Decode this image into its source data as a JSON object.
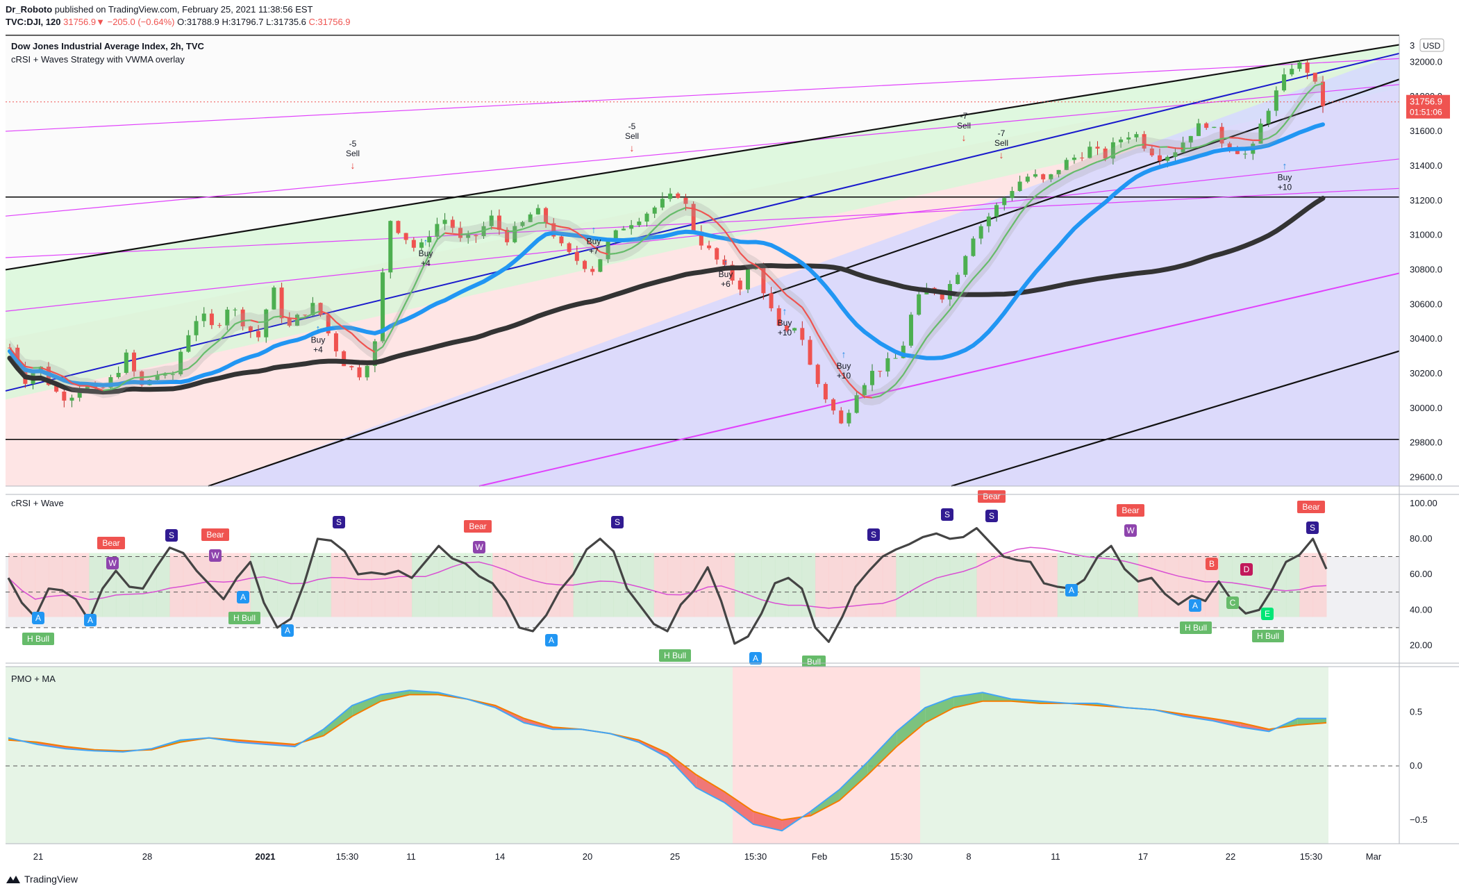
{
  "publisher": {
    "user": "Dr_Roboto",
    "text": "published on TradingView.com, February 25, 2021 11:38:56 EST"
  },
  "ticker_line": {
    "symbol": "TVC:DJI, 120",
    "last": "31756.9",
    "change": "−205.0 (−0.64%)",
    "open": "O:31788.9",
    "high": "H:31796.7",
    "low": "L:31735.6",
    "close": "C:31756.9"
  },
  "main_pane": {
    "title": "Dow Jones Industrial Average Index, 2h, TVC",
    "subtitle": "cRSI + Waves Strategy with VWMA overlay",
    "currency": "USD",
    "price_tag": "31756.9",
    "countdown": "01:51:06",
    "price_axis": [
      "32000.0",
      "31800.0",
      "31600.0",
      "31400.0",
      "31200.0",
      "31000.0",
      "30800.0",
      "30600.0",
      "30400.0",
      "30200.0",
      "30000.0",
      "29800.0",
      "29600.0"
    ],
    "top_partial_label": "3"
  },
  "crsi_pane": {
    "title": "cRSI + Wave",
    "axis": [
      "100.00",
      "80.00",
      "60.00",
      "40.00",
      "20.00"
    ]
  },
  "pmo_pane": {
    "title": "PMO + MA",
    "axis": [
      "0.5",
      "0.0",
      "−0.5"
    ]
  },
  "time_axis": [
    "21",
    "28",
    "2021",
    "15:30",
    "11",
    "14",
    "20",
    "25",
    "15:30",
    "Feb",
    "15:30",
    "8",
    "11",
    "17",
    "22",
    "15:30",
    "Mar"
  ],
  "signals": [
    {
      "type": "sell",
      "l1": "-5",
      "l2": "Sell"
    },
    {
      "type": "sell",
      "l1": "-5",
      "l2": "Sell"
    },
    {
      "type": "sell",
      "l1": "-7",
      "l2": "Sell"
    },
    {
      "type": "sell",
      "l1": "-7",
      "l2": "Sell"
    },
    {
      "type": "buy",
      "l1": "Buy",
      "l2": "+4"
    },
    {
      "type": "buy",
      "l1": "Buy",
      "l2": "+4"
    },
    {
      "type": "buy",
      "l1": "Buy",
      "l2": "+7"
    },
    {
      "type": "buy",
      "l1": "Buy",
      "l2": "+6"
    },
    {
      "type": "buy",
      "l1": "Buy",
      "l2": "+10"
    },
    {
      "type": "buy",
      "l1": "Buy",
      "l2": "+10"
    },
    {
      "type": "buy",
      "l1": "Buy",
      "l2": "+10"
    }
  ],
  "crsi_labels": {
    "bear": "Bear",
    "hbull": "H Bull",
    "bull": "Bull",
    "letters": [
      "A",
      "S",
      "W",
      "B",
      "C",
      "D",
      "E"
    ]
  },
  "colors": {
    "bull_green": "#66bb6a",
    "bear_red": "#ef5350",
    "vwma_blue": "#2196f3",
    "dark_ma": "#333333",
    "channel_magenta": "#e040fb",
    "trend_blue": "#1a1acc"
  },
  "chart_data": [
    {
      "type": "candlestick",
      "title": "Dow Jones Industrial Average Index, 2h, TVC",
      "ylim": [
        29550,
        32150
      ],
      "ylabel": "USD",
      "close_path": [
        30350,
        30160,
        30250,
        30100,
        30060,
        30150,
        30080,
        30170,
        30300,
        30120,
        30200,
        30150,
        30400,
        30550,
        30450,
        30600,
        30500,
        30400,
        30700,
        30450,
        30550,
        30600,
        30400,
        30250,
        30200,
        30350,
        31100,
        31000,
        30900,
        31050,
        31100,
        30950,
        31000,
        31100,
        30980,
        31050,
        31150,
        31050,
        30900,
        30850,
        30800,
        30950,
        31050,
        31100,
        31150,
        31200,
        31250,
        31000,
        30900,
        30800,
        30700,
        30850,
        30600,
        30400,
        30500,
        30200,
        30050,
        29900,
        30100,
        30200,
        30250,
        30300,
        30600,
        30700,
        30650,
        30800,
        31000,
        31100,
        31200,
        31300,
        31350,
        31300,
        31400,
        31450,
        31500,
        31450,
        31550,
        31600,
        31500,
        31450,
        31500,
        31600,
        31650,
        31550,
        31500,
        31450,
        31700,
        31850,
        32000,
        31950,
        31757
      ],
      "last_price": 31756.9
    },
    {
      "type": "line",
      "title": "cRSI + Wave",
      "ylim": [
        10,
        105
      ],
      "series": [
        {
          "values": [
            58,
            44,
            36,
            52,
            51,
            46,
            34,
            52,
            62,
            53,
            52,
            64,
            75,
            72,
            62,
            54,
            46,
            58,
            67,
            44,
            30,
            35,
            55,
            80,
            79,
            73,
            60,
            61,
            60,
            62,
            58,
            67,
            76,
            69,
            66,
            59,
            55,
            45,
            30,
            28,
            37,
            51,
            60,
            74,
            80,
            73,
            52,
            42,
            32,
            28,
            43,
            51,
            64,
            45,
            21,
            25,
            38,
            55,
            58,
            52,
            30,
            22,
            36,
            53,
            62,
            70,
            74,
            77,
            81,
            83,
            80,
            81,
            86,
            78,
            70,
            68,
            67,
            55,
            53,
            52,
            57,
            70,
            76,
            63,
            56,
            58,
            49,
            43,
            48,
            45,
            56,
            45,
            38,
            40,
            52,
            67,
            71,
            80,
            63
          ]
        }
      ]
    },
    {
      "type": "line",
      "title": "PMO + MA",
      "ylim": [
        -0.72,
        0.92
      ],
      "series": [
        {
          "values": [
            0.26,
            0.2,
            0.16,
            0.14,
            0.13,
            0.16,
            0.24,
            0.26,
            0.22,
            0.2,
            0.18,
            0.34,
            0.56,
            0.66,
            0.7,
            0.68,
            0.62,
            0.54,
            0.4,
            0.34,
            0.34,
            0.3,
            0.22,
            0.08,
            -0.2,
            -0.34,
            -0.54,
            -0.6,
            -0.42,
            -0.22,
            0.04,
            0.32,
            0.54,
            0.64,
            0.68,
            0.62,
            0.6,
            0.58,
            0.58,
            0.54,
            0.52,
            0.46,
            0.42,
            0.36,
            0.32,
            0.44,
            0.44
          ]
        },
        {
          "values": [
            0.24,
            0.22,
            0.18,
            0.15,
            0.14,
            0.15,
            0.22,
            0.26,
            0.24,
            0.22,
            0.2,
            0.28,
            0.46,
            0.6,
            0.66,
            0.66,
            0.62,
            0.56,
            0.44,
            0.36,
            0.34,
            0.3,
            0.24,
            0.12,
            -0.08,
            -0.24,
            -0.42,
            -0.5,
            -0.46,
            -0.32,
            -0.08,
            0.18,
            0.4,
            0.54,
            0.6,
            0.6,
            0.58,
            0.58,
            0.56,
            0.54,
            0.52,
            0.48,
            0.44,
            0.4,
            0.34,
            0.38,
            0.4
          ]
        }
      ]
    }
  ]
}
